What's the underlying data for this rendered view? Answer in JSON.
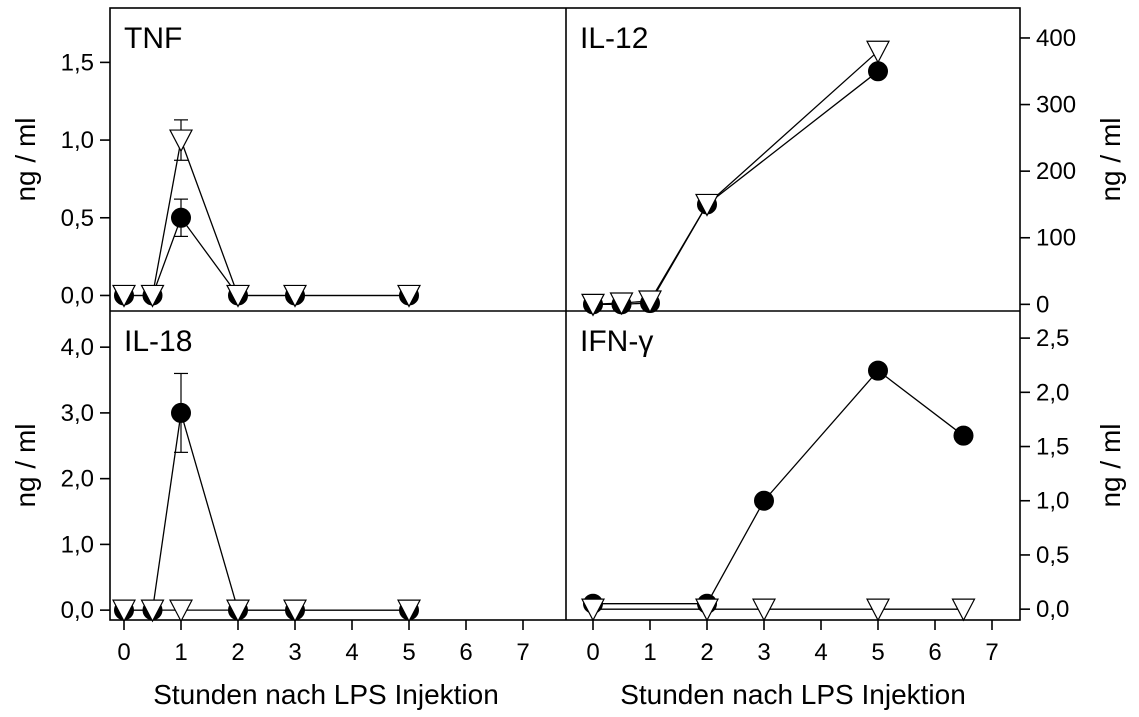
{
  "chart_data": [
    {
      "type": "line",
      "panel": "top-left",
      "title": "TNF",
      "ylabel": "ng / ml",
      "yaxis_side": "left",
      "ylim": [
        -0.1,
        1.85
      ],
      "yticks": [
        0.0,
        0.5,
        1.0,
        1.5
      ],
      "ytick_labels": [
        "0,0",
        "0,5",
        "1,0",
        "1,5"
      ],
      "series": [
        {
          "marker": "filled-circle",
          "color": "#000000",
          "x": [
            0,
            0.5,
            1,
            2,
            3,
            5
          ],
          "y": [
            0,
            0,
            0.5,
            0,
            0,
            0
          ],
          "err": [
            0,
            0,
            0.12,
            0,
            0,
            0
          ]
        },
        {
          "marker": "open-triangle-down",
          "color": "#ffffff",
          "x": [
            0,
            0.5,
            1,
            2,
            3,
            5
          ],
          "y": [
            0,
            0,
            1.0,
            0,
            0,
            0
          ],
          "err": [
            0,
            0,
            0.13,
            0,
            0,
            0
          ]
        }
      ]
    },
    {
      "type": "line",
      "panel": "top-right",
      "title": "IL-12",
      "ylabel": "ng / ml",
      "yaxis_side": "right",
      "ylim": [
        -10,
        445
      ],
      "yticks": [
        0,
        100,
        200,
        300,
        400
      ],
      "ytick_labels": [
        "0",
        "100",
        "200",
        "300",
        "400"
      ],
      "series": [
        {
          "marker": "filled-circle",
          "color": "#000000",
          "x": [
            0,
            0.5,
            1,
            2,
            5
          ],
          "y": [
            0,
            0,
            2,
            150,
            350
          ]
        },
        {
          "marker": "open-triangle-down",
          "color": "#ffffff",
          "x": [
            0,
            0.5,
            1,
            2,
            5
          ],
          "y": [
            0,
            2,
            5,
            150,
            380
          ]
        }
      ]
    },
    {
      "type": "line",
      "panel": "bottom-left",
      "title": "IL-18",
      "ylabel": "ng / ml",
      "yaxis_side": "left",
      "ylim": [
        -0.15,
        4.55
      ],
      "yticks": [
        0.0,
        1.0,
        2.0,
        3.0,
        4.0
      ],
      "ytick_labels": [
        "0,0",
        "1,0",
        "2,0",
        "3,0",
        "4,0"
      ],
      "xticks": [
        0,
        1,
        2,
        3,
        4,
        5,
        6,
        7
      ],
      "xtick_labels": [
        "0",
        "1",
        "2",
        "3",
        "4",
        "5",
        "6",
        "7"
      ],
      "xlabel": "Stunden nach LPS Injektion",
      "series": [
        {
          "marker": "filled-circle",
          "color": "#000000",
          "x": [
            0,
            0.5,
            1,
            2,
            3,
            5
          ],
          "y": [
            0,
            0,
            3.0,
            0,
            0,
            0
          ],
          "err": [
            0,
            0,
            0.6,
            0,
            0,
            0
          ]
        },
        {
          "marker": "open-triangle-down",
          "color": "#ffffff",
          "x": [
            0,
            0.5,
            1,
            2,
            3,
            5
          ],
          "y": [
            0,
            0,
            0,
            0,
            0,
            0
          ]
        }
      ]
    },
    {
      "type": "line",
      "panel": "bottom-right",
      "title": "IFN-γ",
      "ylabel": "ng / ml",
      "yaxis_side": "right",
      "ylim": [
        -0.1,
        2.75
      ],
      "yticks": [
        0.0,
        0.5,
        1.0,
        1.5,
        2.0,
        2.5
      ],
      "ytick_labels": [
        "0,0",
        "0,5",
        "1,0",
        "1,5",
        "2,0",
        "2,5"
      ],
      "xticks": [
        0,
        1,
        2,
        3,
        4,
        5,
        6,
        7
      ],
      "xtick_labels": [
        "0",
        "1",
        "2",
        "3",
        "4",
        "5",
        "6",
        "7"
      ],
      "xlabel": "Stunden nach LPS Injektion",
      "series": [
        {
          "marker": "filled-circle",
          "color": "#000000",
          "x": [
            0,
            2,
            3,
            5,
            6.5
          ],
          "y": [
            0.05,
            0.05,
            1.0,
            2.2,
            1.6
          ]
        },
        {
          "marker": "open-triangle-down",
          "color": "#ffffff",
          "x": [
            0,
            2,
            3,
            5,
            6.5
          ],
          "y": [
            0,
            0,
            0,
            0,
            0
          ]
        }
      ]
    }
  ]
}
